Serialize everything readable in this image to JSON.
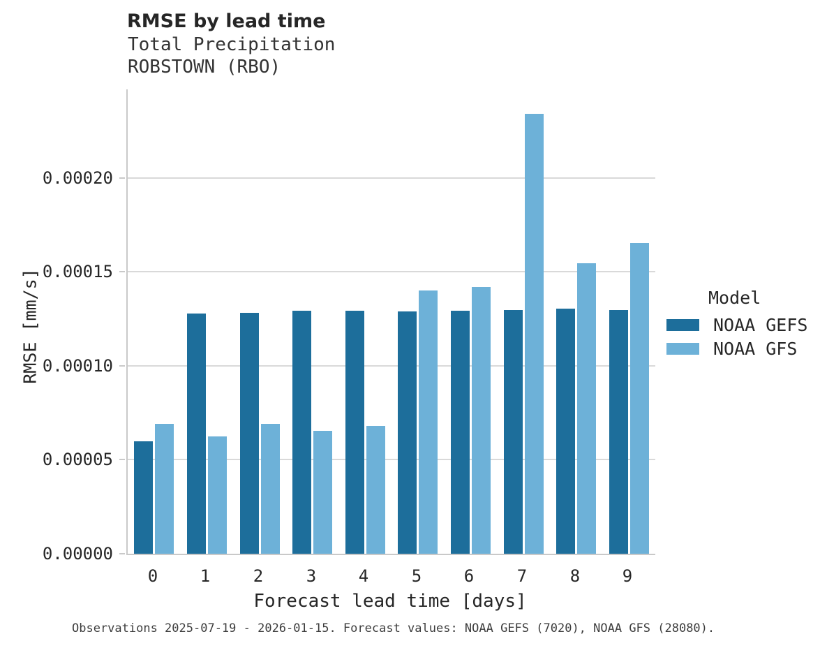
{
  "header": {
    "title": "RMSE by lead time",
    "subtitle1": "Total Precipitation",
    "subtitle2": "ROBSTOWN (RBO)"
  },
  "caption": "Observations 2025-07-19 - 2026-01-15. Forecast values: NOAA GEFS (7020), NOAA GFS (28080).",
  "chart_data": {
    "type": "bar",
    "title": "RMSE by lead time",
    "subtitle": [
      "Total Precipitation",
      "ROBSTOWN (RBO)"
    ],
    "xlabel": "Forecast lead time [days]",
    "ylabel": "RMSE [mm/s]",
    "categories": [
      "0",
      "1",
      "2",
      "3",
      "4",
      "5",
      "6",
      "7",
      "8",
      "9"
    ],
    "series": [
      {
        "name": "NOAA GEFS",
        "color": "#1d6e9b",
        "values": [
          6e-05,
          0.0001277,
          0.0001283,
          0.0001292,
          0.0001294,
          0.000129,
          0.0001293,
          0.0001298,
          0.0001305,
          0.0001297
        ]
      },
      {
        "name": "NOAA GFS",
        "color": "#6db1d8",
        "values": [
          6.9e-05,
          6.25e-05,
          6.9e-05,
          6.55e-05,
          6.8e-05,
          0.0001403,
          0.0001421,
          0.0002343,
          0.0001545,
          0.0001653
        ]
      }
    ],
    "yticks": [
      {
        "value": 0.0,
        "label": "0.00000"
      },
      {
        "value": 5e-05,
        "label": "0.00005"
      },
      {
        "value": 0.0001,
        "label": "0.00010"
      },
      {
        "value": 0.00015,
        "label": "0.00015"
      },
      {
        "value": 0.0002,
        "label": "0.00020"
      }
    ],
    "ylim": [
      0,
      0.0002472
    ],
    "grid": true,
    "legend_title": "Model",
    "legend_position": "right",
    "bar_colors_note": {
      "dark_blue": "#1d6e9b",
      "light_blue": "#6db1d8"
    },
    "gridline_color": "#d9d9d9",
    "spine_color": "#c9c9c9"
  }
}
